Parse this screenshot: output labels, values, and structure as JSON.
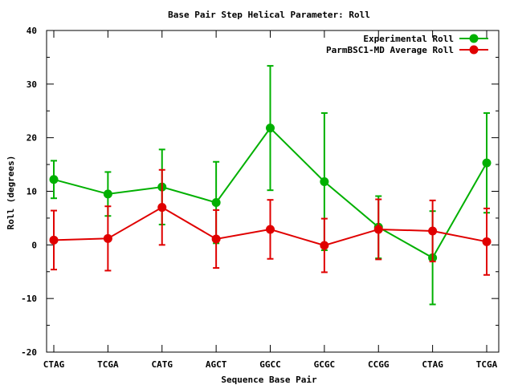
{
  "chart_data": {
    "type": "line",
    "title": "Base Pair Step Helical Parameter: Roll",
    "xlabel": "Sequence Base Pair",
    "ylabel": "Roll (degrees)",
    "categories": [
      "CTAG",
      "TCGA",
      "CATG",
      "AGCT",
      "GGCC",
      "GCGC",
      "CCGG",
      "CTAG",
      "TCGA"
    ],
    "ylim": [
      -20,
      40
    ],
    "yticks": [
      -20,
      -10,
      0,
      10,
      20,
      30,
      40
    ],
    "ytick_labels": [
      "-20",
      "-10",
      "0",
      "10",
      "20",
      "30",
      "40"
    ],
    "legend_position": "top-right",
    "grid": false,
    "series": [
      {
        "name": "Experimental Roll",
        "color": "#00b000",
        "values": [
          12.2,
          9.5,
          10.8,
          7.9,
          21.8,
          11.8,
          3.3,
          -2.4,
          15.3
        ],
        "errors": [
          3.5,
          4.1,
          7.0,
          7.6,
          11.6,
          12.8,
          5.8,
          8.7,
          9.3
        ]
      },
      {
        "name": "ParmBSC1-MD Average Roll",
        "color": "#e00000",
        "values": [
          0.9,
          1.2,
          7.0,
          1.1,
          2.9,
          -0.1,
          2.9,
          2.6,
          0.6
        ],
        "errors": [
          5.5,
          6.0,
          7.0,
          5.4,
          5.5,
          5.0,
          5.6,
          5.7,
          6.2
        ]
      }
    ]
  }
}
